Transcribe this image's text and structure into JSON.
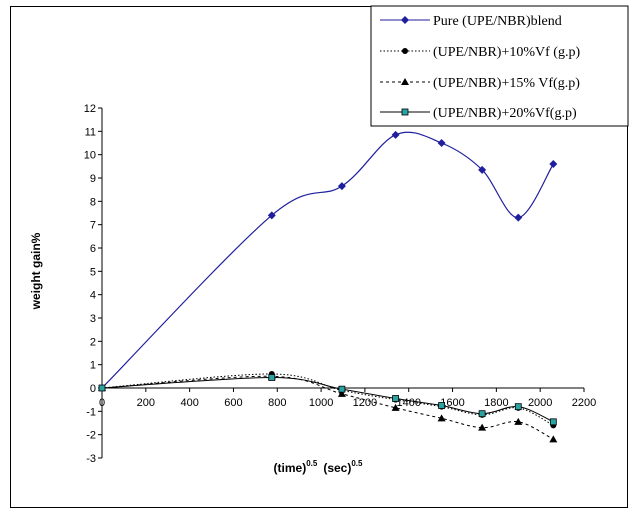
{
  "chart_data": {
    "type": "line",
    "title": "",
    "xlabel": {
      "base1": "(time)",
      "sup1": "0.5",
      "base2": "(sec)",
      "sup2": "0.5"
    },
    "ylabel": "weight gain%",
    "xlim": [
      0,
      2200
    ],
    "ylim": [
      -3,
      12
    ],
    "xticks": [
      0,
      200,
      400,
      600,
      800,
      1000,
      1200,
      1400,
      1600,
      1800,
      2000,
      2200
    ],
    "yticks": [
      -3,
      -2,
      -1,
      0,
      1,
      2,
      3,
      4,
      5,
      6,
      7,
      8,
      9,
      10,
      11,
      12
    ],
    "legend_position": "top-right",
    "grid": false,
    "series": [
      {
        "name": "Pure (UPE/NBR)blend",
        "color": "#1f1f9e",
        "marker": "diamond",
        "dash": "solid",
        "x": [
          0,
          775,
          1095,
          1340,
          1550,
          1735,
          1900,
          2060
        ],
        "y": [
          0,
          7.4,
          8.65,
          10.85,
          10.5,
          9.35,
          7.3,
          9.6
        ]
      },
      {
        "name": "(UPE/NBR)+10%Vf (g.p)",
        "color": "#000000",
        "marker": "circle",
        "dash": "dotted",
        "x": [
          0,
          775,
          1095,
          1340,
          1550,
          1735,
          1900,
          2060
        ],
        "y": [
          0,
          0.6,
          -0.1,
          -0.5,
          -0.8,
          -1.15,
          -0.85,
          -1.6
        ]
      },
      {
        "name": "(UPE/NBR)+15% Vf(g.p)",
        "color": "#000000",
        "marker": "triangle",
        "dash": "dashed",
        "x": [
          0,
          775,
          1095,
          1340,
          1550,
          1735,
          1900,
          2060
        ],
        "y": [
          0,
          0.5,
          -0.25,
          -0.85,
          -1.3,
          -1.7,
          -1.45,
          -2.2
        ]
      },
      {
        "name": "(UPE/NBR)+20%Vf(g.p)",
        "color": "#000000",
        "marker": "square",
        "dash": "solid",
        "x": [
          0,
          775,
          1095,
          1340,
          1550,
          1735,
          1900,
          2060
        ],
        "y": [
          0,
          0.45,
          -0.05,
          -0.45,
          -0.75,
          -1.1,
          -0.8,
          -1.45
        ]
      }
    ]
  }
}
